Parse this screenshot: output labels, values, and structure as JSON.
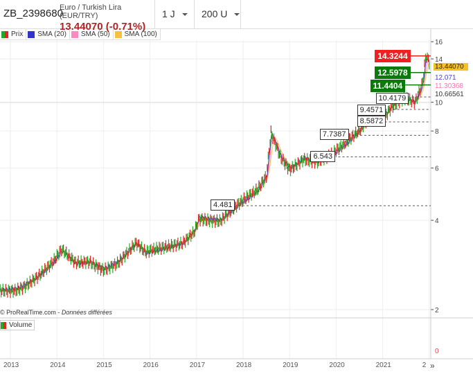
{
  "header": {
    "symbol": "ZB_2398680",
    "instrument": "Euro / Turkish Lira (EUR/TRY)",
    "price": "13.44070 (-0.71%)",
    "interval": "1 J",
    "units": "200 U"
  },
  "legend": [
    {
      "label": "Prix",
      "color": "#e22222"
    },
    {
      "label": "SMA (20)",
      "color": "#3333cc"
    },
    {
      "label": "SMA (50)",
      "color": "#ff88c0"
    },
    {
      "label": "SMA (100)",
      "color": "#f8c040"
    }
  ],
  "y_ticks": [
    "16",
    "14",
    "10",
    "8",
    "6",
    "4",
    "2"
  ],
  "y_tick_values": [
    16,
    14,
    10,
    8,
    6,
    4,
    2
  ],
  "price_levels": [
    {
      "label": "4.481",
      "value": 4.481,
      "year": 2017.3,
      "style": "plain"
    },
    {
      "label": "6.543",
      "value": 6.543,
      "year": 2019.45,
      "style": "plain"
    },
    {
      "label": "7.7387",
      "value": 7.7387,
      "year": 2019.65,
      "style": "plain"
    },
    {
      "label": "8.5872",
      "value": 8.5872,
      "year": 2020.45,
      "style": "plain"
    },
    {
      "label": "9.4571",
      "value": 9.4571,
      "year": 2020.45,
      "style": "plain"
    },
    {
      "label": "10.4179",
      "value": 10.4179,
      "year": 2020.85,
      "style": "plain"
    },
    {
      "label": "11.4404",
      "value": 11.4404,
      "year": 2020.85,
      "style": "green"
    },
    {
      "label": "12.5978",
      "value": 12.5978,
      "year": 2020.95,
      "style": "green"
    },
    {
      "label": "14.3244",
      "value": 14.3244,
      "year": 2020.95,
      "style": "red"
    }
  ],
  "right_values": [
    {
      "label": "13.44070",
      "value": 13.4407,
      "bg": "#f8c020",
      "fg": "#222"
    },
    {
      "label": "12.071",
      "value": 12.071,
      "bg": "#fff",
      "fg": "#4444cc"
    },
    {
      "label": "11.30368",
      "value": 11.30368,
      "bg": "#fff",
      "fg": "#ff70b0"
    },
    {
      "label": "10.66561",
      "value": 10.66561,
      "bg": "#fff",
      "fg": "#333"
    }
  ],
  "price_series": [
    [
      2012.8,
      2.33
    ],
    [
      2013.1,
      2.35
    ],
    [
      2013.3,
      2.42
    ],
    [
      2013.6,
      2.6
    ],
    [
      2013.9,
      2.85
    ],
    [
      2014.1,
      3.15
    ],
    [
      2014.4,
      2.85
    ],
    [
      2014.7,
      2.9
    ],
    [
      2015.0,
      2.75
    ],
    [
      2015.3,
      2.9
    ],
    [
      2015.7,
      3.35
    ],
    [
      2015.9,
      3.1
    ],
    [
      2016.3,
      3.2
    ],
    [
      2016.7,
      3.35
    ],
    [
      2016.95,
      3.7
    ],
    [
      2017.05,
      4.1
    ],
    [
      2017.5,
      4.0
    ],
    [
      2017.9,
      4.5
    ],
    [
      2018.3,
      5.0
    ],
    [
      2018.5,
      5.6
    ],
    [
      2018.6,
      7.9
    ],
    [
      2018.8,
      6.6
    ],
    [
      2019.0,
      6.0
    ],
    [
      2019.3,
      6.5
    ],
    [
      2019.6,
      6.3
    ],
    [
      2019.9,
      6.6
    ],
    [
      2020.2,
      7.2
    ],
    [
      2020.5,
      8.0
    ],
    [
      2020.8,
      9.4
    ],
    [
      2021.0,
      8.9
    ],
    [
      2021.2,
      9.8
    ],
    [
      2021.45,
      10.4
    ],
    [
      2021.7,
      10.0
    ],
    [
      2021.85,
      11.4
    ],
    [
      2021.93,
      14.3
    ],
    [
      2022.0,
      13.44
    ]
  ],
  "credit": "© ProRealTime.com - ",
  "credit_italic": "Données différées",
  "volume": {
    "label": "Volume",
    "zero": "0"
  },
  "years": [
    "2013",
    "2014",
    "2015",
    "2016",
    "2017",
    "2018",
    "2019",
    "2020",
    "2021",
    "2"
  ],
  "nav": "»"
}
